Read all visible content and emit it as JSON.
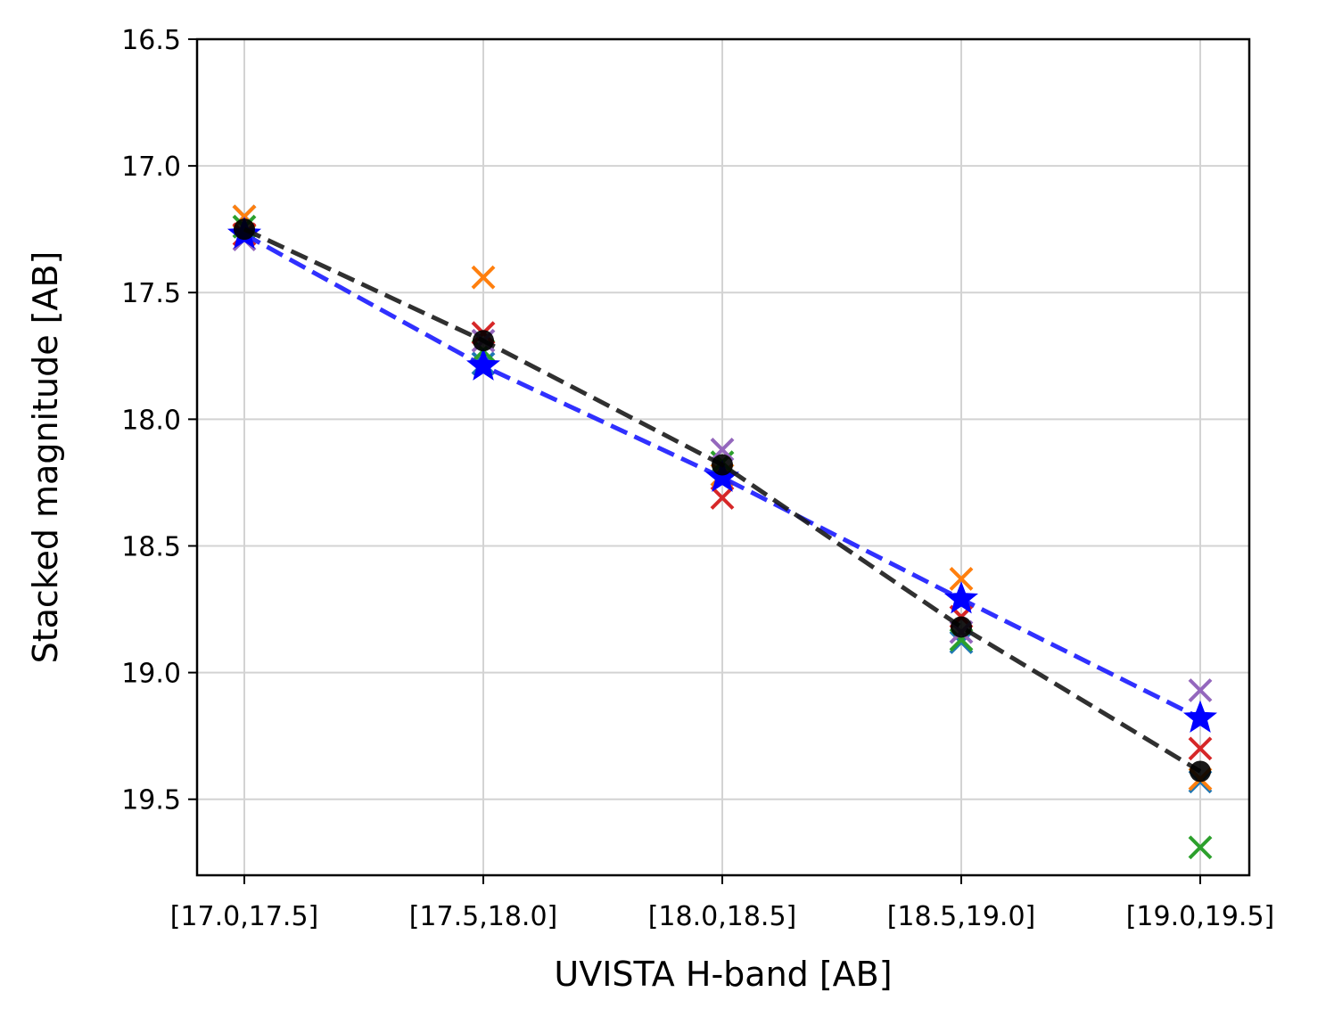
{
  "chart_data": {
    "type": "scatter",
    "xlabel": "UVISTA H-band [AB]",
    "ylabel": "Stacked magnitude [AB]",
    "categories": [
      "[17.0,17.5]",
      "[17.5,18.0]",
      "[18.0,18.5]",
      "[18.5,19.0]",
      "[19.0,19.5]"
    ],
    "ylim": [
      19.8,
      16.5
    ],
    "y_inverted": true,
    "yticks": [
      "16.5",
      "17.0",
      "17.5",
      "18.0",
      "18.5",
      "19.0",
      "19.5"
    ],
    "grid": true,
    "legend": "none",
    "series": [
      {
        "marker": "x",
        "color": "#1f77b4",
        "values": [
          17.2,
          17.78,
          18.22,
          18.88,
          19.43
        ]
      },
      {
        "marker": "x",
        "color": "#ff7f0e",
        "values": [
          17.2,
          17.44,
          18.22,
          18.63,
          19.42
        ]
      },
      {
        "marker": "x",
        "color": "#2ca02c",
        "values": [
          17.24,
          17.73,
          18.17,
          18.87,
          19.69
        ]
      },
      {
        "marker": "x",
        "color": "#d62728",
        "values": [
          17.27,
          17.66,
          18.31,
          18.78,
          19.3
        ]
      },
      {
        "marker": "x",
        "color": "#9467bd",
        "values": [
          17.29,
          17.69,
          18.12,
          18.84,
          19.07
        ]
      },
      {
        "marker": "star",
        "line": "dashed",
        "color": "#1a1aff",
        "values": [
          17.27,
          17.79,
          18.23,
          18.71,
          19.18
        ]
      },
      {
        "marker": "circle",
        "line": "dashed",
        "color": "#1a1a1a",
        "values": [
          17.25,
          17.69,
          18.18,
          18.82,
          19.39
        ]
      }
    ]
  }
}
